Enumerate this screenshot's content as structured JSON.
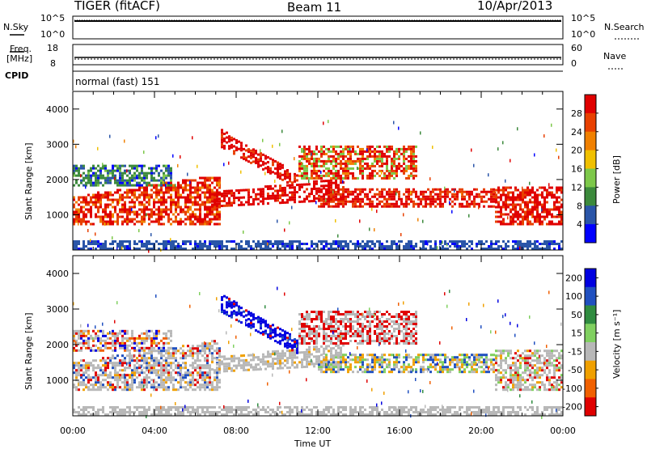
{
  "header": {
    "radar": "TIGER (fitACF)",
    "beam": "Beam 11",
    "date": "10/Apr/2013"
  },
  "panels": {
    "nsky_label": "N.Sky",
    "nsearch_label": "N.Search",
    "nsky_ticks": [
      "10^5",
      "10^0"
    ],
    "nsearch_ticks": [
      "10^5",
      "10^0"
    ],
    "freq_label_1": "Freq.",
    "freq_label_2": "[MHz]",
    "freq_ticks": [
      "18",
      "8"
    ],
    "nave_label": "Nave",
    "nave_ticks": [
      "60",
      "0"
    ],
    "cpid_label": "CPID",
    "cpid_value": "normal (fast) 151"
  },
  "chart_data": [
    {
      "type": "heatmap",
      "name": "power",
      "ylabel": "Slant Range [km]",
      "ylim": [
        0,
        4500
      ],
      "yticks": [
        "1000",
        "2000",
        "3000",
        "4000"
      ],
      "colorbar_label": "Power [dB]",
      "colorbar_ticks": [
        "4",
        "8",
        "12",
        "16",
        "20",
        "24",
        "28"
      ],
      "colors": [
        "#0000ff",
        "#2a55a8",
        "#3c8a3c",
        "#7dc84a",
        "#f0c000",
        "#f08000",
        "#e84000",
        "#e00000"
      ]
    },
    {
      "type": "heatmap",
      "name": "velocity",
      "ylabel": "Slant Range [km]",
      "ylim": [
        0,
        4500
      ],
      "yticks": [
        "1000",
        "2000",
        "3000",
        "4000"
      ],
      "colorbar_label": "Velocity [m s⁻¹]",
      "colorbar_ticks": [
        "200",
        "100",
        "50",
        "15",
        "-15",
        "-50",
        "-100",
        "-200"
      ],
      "colors": [
        "#0000e0",
        "#2050c0",
        "#308c40",
        "#80d060",
        "#b8b8b8",
        "#f0a000",
        "#f06000",
        "#e00000"
      ],
      "xlabel": "Time UT",
      "xticks": [
        "00:00",
        "04:00",
        "08:00",
        "12:00",
        "16:00",
        "20:00",
        "00:00"
      ]
    }
  ]
}
